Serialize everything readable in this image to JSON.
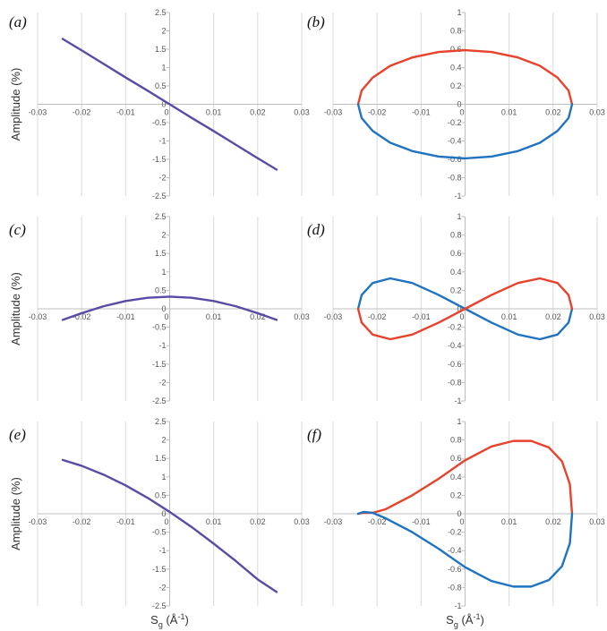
{
  "figure": {
    "ylabel": "Amplitude (%)",
    "xlabel_main": "S",
    "xlabel_sub": "g",
    "xlabel_rest": " (Å",
    "xlabel_sup": "-1",
    "xlabel_close": ")"
  },
  "styles": {
    "grid_color": "#d9d9d9",
    "axis_color": "#bfbfbf",
    "purple": "#5b4aa6",
    "red": "#e8412c",
    "blue": "#1f73c1"
  },
  "chart_data": [
    {
      "panel": "(a)",
      "type": "line",
      "xlim": [
        -0.03,
        0.03
      ],
      "ylim": [
        -2.5,
        2.5
      ],
      "xticks": [
        -0.03,
        -0.02,
        -0.01,
        0,
        0.01,
        0.02,
        0.03
      ],
      "xtick_labels": [
        "-0.03",
        "-0.02",
        "-0.01",
        "0",
        "0.01",
        "0.02",
        "0.03"
      ],
      "yticks": [
        -2.5,
        -2,
        -1.5,
        -1,
        -0.5,
        0,
        0.5,
        1,
        1.5,
        2,
        2.5
      ],
      "ytick_labels": [
        "-2.5",
        "-2",
        "-1.5",
        "-1",
        "-0.5",
        "0",
        "0.5",
        "1",
        "1.5",
        "2",
        "2.5"
      ],
      "ylabel": "Amplitude (%)",
      "series": [
        {
          "color": "purple",
          "x": [
            -0.0243,
            -0.02,
            -0.015,
            -0.01,
            -0.005,
            0,
            0.005,
            0.01,
            0.015,
            0.02,
            0.0243
          ],
          "y": [
            1.78,
            1.47,
            1.1,
            0.73,
            0.37,
            0,
            -0.37,
            -0.73,
            -1.1,
            -1.47,
            -1.78
          ]
        }
      ]
    },
    {
      "panel": "(b)",
      "type": "line",
      "xlim": [
        -0.03,
        0.03
      ],
      "ylim": [
        -1,
        1
      ],
      "xticks": [
        -0.03,
        -0.02,
        -0.01,
        0,
        0.01,
        0.02,
        0.03
      ],
      "xtick_labels": [
        "-0.03",
        "-0.02",
        "-0.01",
        "0",
        "0.01",
        "0.02",
        "0.03"
      ],
      "yticks": [
        -1,
        -0.8,
        -0.6,
        -0.4,
        -0.2,
        0,
        0.2,
        0.4,
        0.6,
        0.8,
        1
      ],
      "ytick_labels": [
        "-1",
        "-0.8",
        "-0.6",
        "-0.4",
        "-0.2",
        "0",
        "0.2",
        "0.4",
        "0.6",
        "0.8",
        "1"
      ],
      "series": [
        {
          "color": "red",
          "x": [
            -0.0243,
            -0.0235,
            -0.021,
            -0.017,
            -0.012,
            -0.006,
            0,
            0.006,
            0.012,
            0.017,
            0.021,
            0.0235,
            0.0243
          ],
          "y": [
            0,
            0.15,
            0.29,
            0.42,
            0.51,
            0.57,
            0.59,
            0.57,
            0.51,
            0.42,
            0.29,
            0.15,
            0
          ]
        },
        {
          "color": "blue",
          "x": [
            -0.0243,
            -0.0235,
            -0.021,
            -0.017,
            -0.012,
            -0.006,
            0,
            0.006,
            0.012,
            0.017,
            0.021,
            0.0235,
            0.0243
          ],
          "y": [
            0,
            -0.15,
            -0.29,
            -0.42,
            -0.51,
            -0.57,
            -0.59,
            -0.57,
            -0.51,
            -0.42,
            -0.29,
            -0.15,
            0
          ]
        }
      ]
    },
    {
      "panel": "(c)",
      "type": "line",
      "xlim": [
        -0.03,
        0.03
      ],
      "ylim": [
        -2.5,
        2.5
      ],
      "xticks": [
        -0.03,
        -0.02,
        -0.01,
        0,
        0.01,
        0.02,
        0.03
      ],
      "xtick_labels": [
        "-0.03",
        "-0.02",
        "-0.01",
        "0",
        "0.01",
        "0.02",
        "0.03"
      ],
      "yticks": [
        -2.5,
        -2,
        -1.5,
        -1,
        -0.5,
        0,
        0.5,
        1,
        1.5,
        2,
        2.5
      ],
      "ytick_labels": [
        "-2.5",
        "-2",
        "-1.5",
        "-1",
        "-0.5",
        "0",
        "0.5",
        "1",
        "1.5",
        "2",
        "2.5"
      ],
      "ylabel": "Amplitude (%)",
      "series": [
        {
          "color": "purple",
          "x": [
            -0.0243,
            -0.02,
            -0.015,
            -0.01,
            -0.005,
            0,
            0.005,
            0.01,
            0.015,
            0.02,
            0.0243
          ],
          "y": [
            -0.3,
            -0.12,
            0.07,
            0.21,
            0.3,
            0.33,
            0.3,
            0.21,
            0.07,
            -0.12,
            -0.3
          ]
        }
      ]
    },
    {
      "panel": "(d)",
      "type": "line",
      "xlim": [
        -0.03,
        0.03
      ],
      "ylim": [
        -1,
        1
      ],
      "xticks": [
        -0.03,
        -0.02,
        -0.01,
        0,
        0.01,
        0.02,
        0.03
      ],
      "xtick_labels": [
        "-0.03",
        "-0.02",
        "-0.01",
        "0",
        "0.01",
        "0.02",
        "0.03"
      ],
      "yticks": [
        -1,
        -0.8,
        -0.6,
        -0.4,
        -0.2,
        0,
        0.2,
        0.4,
        0.6,
        0.8,
        1
      ],
      "ytick_labels": [
        "-1",
        "-0.8",
        "-0.6",
        "-0.4",
        "-0.2",
        "0",
        "0.2",
        "0.4",
        "0.6",
        "0.8",
        "1"
      ],
      "series": [
        {
          "color": "blue",
          "x": [
            -0.0243,
            -0.0235,
            -0.021,
            -0.017,
            -0.012,
            -0.006,
            0,
            0.006,
            0.012,
            0.017,
            0.021,
            0.0235,
            0.0243
          ],
          "y": [
            0,
            0.15,
            0.28,
            0.33,
            0.28,
            0.15,
            0,
            -0.15,
            -0.28,
            -0.33,
            -0.28,
            -0.15,
            0
          ]
        },
        {
          "color": "red",
          "x": [
            -0.0243,
            -0.0235,
            -0.021,
            -0.017,
            -0.012,
            -0.006,
            0,
            0.006,
            0.012,
            0.017,
            0.021,
            0.0235,
            0.0243
          ],
          "y": [
            0,
            -0.15,
            -0.28,
            -0.33,
            -0.28,
            -0.15,
            0,
            0.15,
            0.28,
            0.33,
            0.28,
            0.15,
            0
          ]
        }
      ]
    },
    {
      "panel": "(e)",
      "type": "line",
      "xlim": [
        -0.03,
        0.03
      ],
      "ylim": [
        -2.5,
        2.5
      ],
      "xticks": [
        -0.03,
        -0.02,
        -0.01,
        0,
        0.01,
        0.02,
        0.03
      ],
      "xtick_labels": [
        "-0.03",
        "-0.02",
        "-0.01",
        "0",
        "0.01",
        "0.02",
        "0.03"
      ],
      "yticks": [
        -2.5,
        -2,
        -1.5,
        -1,
        -0.5,
        0,
        0.5,
        1,
        1.5,
        2,
        2.5
      ],
      "ytick_labels": [
        "-2.5",
        "-2",
        "-1.5",
        "-1",
        "-0.5",
        "0",
        "0.5",
        "1",
        "1.5",
        "2",
        "2.5"
      ],
      "ylabel": "Amplitude (%)",
      "xlabel": "Sg (Å-1)",
      "series": [
        {
          "color": "purple",
          "x": [
            -0.0243,
            -0.02,
            -0.015,
            -0.01,
            -0.005,
            0,
            0.005,
            0.01,
            0.015,
            0.02,
            0.0243
          ],
          "y": [
            1.46,
            1.3,
            1.06,
            0.77,
            0.43,
            0.05,
            -0.36,
            -0.81,
            -1.28,
            -1.78,
            -2.12
          ]
        }
      ]
    },
    {
      "panel": "(f)",
      "type": "line",
      "xlim": [
        -0.03,
        0.03
      ],
      "ylim": [
        -1,
        1
      ],
      "xticks": [
        -0.03,
        -0.02,
        -0.01,
        0,
        0.01,
        0.02,
        0.03
      ],
      "xtick_labels": [
        "-0.03",
        "-0.02",
        "-0.01",
        "0",
        "0.01",
        "0.02",
        "0.03"
      ],
      "yticks": [
        -1,
        -0.8,
        -0.6,
        -0.4,
        -0.2,
        0,
        0.2,
        0.4,
        0.6,
        0.8,
        1
      ],
      "ytick_labels": [
        "-1",
        "-0.8",
        "-0.6",
        "-0.4",
        "-0.2",
        "0",
        "0.2",
        "0.4",
        "0.6",
        "0.8",
        "1"
      ],
      "xlabel": "Sg (Å-1)",
      "series": [
        {
          "color": "red",
          "x": [
            -0.0243,
            -0.023,
            -0.021,
            -0.018,
            -0.012,
            -0.006,
            0,
            0.006,
            0.011,
            0.015,
            0.019,
            0.022,
            0.0238,
            0.0243
          ],
          "y": [
            0,
            0.01,
            0.01,
            0.05,
            0.2,
            0.38,
            0.58,
            0.73,
            0.79,
            0.79,
            0.72,
            0.57,
            0.32,
            0
          ]
        },
        {
          "color": "blue",
          "x": [
            -0.0243,
            -0.023,
            -0.021,
            -0.018,
            -0.012,
            -0.006,
            0,
            0.006,
            0.011,
            0.015,
            0.019,
            0.022,
            0.0238,
            0.0243
          ],
          "y": [
            0,
            0.02,
            0.01,
            -0.05,
            -0.2,
            -0.38,
            -0.58,
            -0.73,
            -0.79,
            -0.79,
            -0.72,
            -0.57,
            -0.32,
            0
          ]
        }
      ]
    }
  ]
}
